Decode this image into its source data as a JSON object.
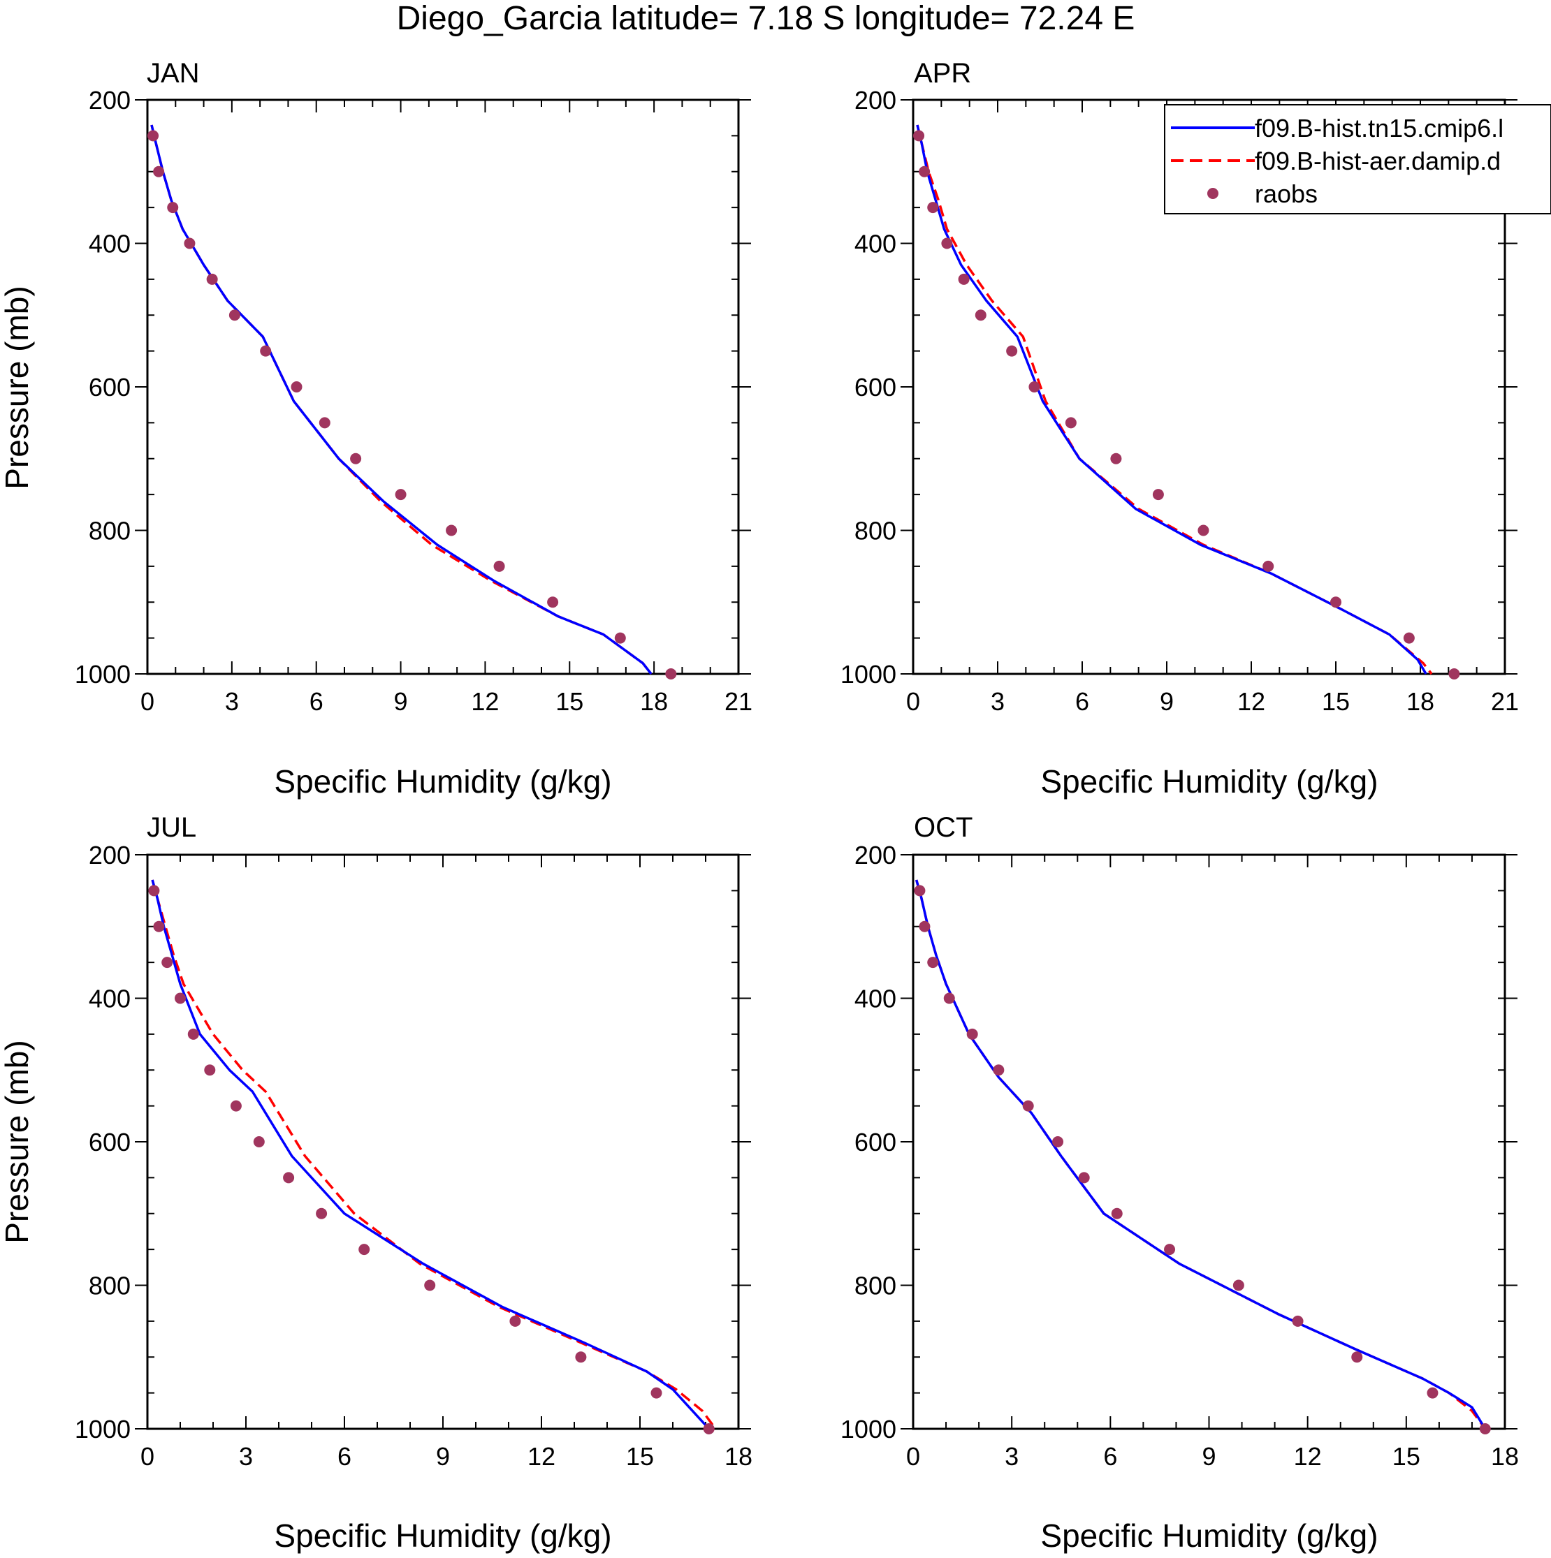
{
  "figure": {
    "title": "Diego_Garcia  latitude= 7.18 S longitude= 72.24 E"
  },
  "legend": {
    "entries": [
      {
        "label": "f09.B-hist.tn15.cmip6.l",
        "color": "#0000ff",
        "style": "solid"
      },
      {
        "label": "f09.B-hist-aer.damip.d",
        "color": "#ff0000",
        "style": "dashed"
      },
      {
        "label": "raobs",
        "color": "#a0355e",
        "style": "marker"
      }
    ]
  },
  "chart_data": [
    {
      "type": "line",
      "title": "JAN",
      "xlabel": "Specific Humidity (g/kg)",
      "ylabel": "Pressure (mb)",
      "xlim": [
        0,
        21
      ],
      "xticks": [
        0,
        3,
        6,
        9,
        12,
        15,
        18,
        21
      ],
      "ylim": [
        200,
        1000
      ],
      "yticks": [
        200,
        400,
        600,
        800,
        1000
      ],
      "y_reversed": true,
      "series": [
        {
          "name": "f09.B-hist.tn15.cmip6.l",
          "x": [
            0.15,
            0.3,
            0.55,
            0.85,
            1.25,
            2.0,
            2.85,
            4.1,
            5.2,
            6.8,
            8.4,
            10.3,
            12.3,
            14.6,
            16.2,
            17.6,
            17.9
          ],
          "y": [
            235,
            260,
            300,
            340,
            380,
            430,
            480,
            530,
            620,
            700,
            760,
            820,
            870,
            920,
            945,
            985,
            1000
          ]
        },
        {
          "name": "f09.B-hist-aer.damip.d",
          "x": [
            0.15,
            0.3,
            0.55,
            0.85,
            1.25,
            2.0,
            2.85,
            4.1,
            5.2,
            6.8,
            8.3,
            10.1,
            12.2,
            14.6,
            16.2,
            17.6,
            17.9
          ],
          "y": [
            235,
            260,
            300,
            340,
            380,
            430,
            480,
            530,
            620,
            700,
            760,
            820,
            870,
            920,
            945,
            985,
            1000
          ]
        },
        {
          "name": "raobs",
          "x": [
            0.2,
            0.4,
            0.9,
            1.5,
            2.3,
            3.1,
            4.2,
            5.3,
            6.3,
            7.4,
            9.0,
            10.8,
            12.5,
            14.4,
            16.8,
            18.6
          ],
          "y": [
            250,
            300,
            350,
            400,
            450,
            500,
            550,
            600,
            650,
            700,
            750,
            800,
            850,
            900,
            950,
            1000
          ]
        }
      ]
    },
    {
      "type": "line",
      "title": "APR",
      "xlabel": "Specific Humidity (g/kg)",
      "ylabel": "",
      "xlim": [
        0,
        21
      ],
      "xticks": [
        0,
        3,
        6,
        9,
        12,
        15,
        18,
        21
      ],
      "ylim": [
        200,
        1000
      ],
      "yticks": [
        200,
        400,
        600,
        800,
        1000
      ],
      "y_reversed": true,
      "series": [
        {
          "name": "f09.B-hist.tn15.cmip6.l",
          "x": [
            0.15,
            0.3,
            0.5,
            0.8,
            1.1,
            1.7,
            2.6,
            3.7,
            4.6,
            5.9,
            7.9,
            10.2,
            12.7,
            15.2,
            16.9,
            17.9,
            18.2
          ],
          "y": [
            235,
            260,
            300,
            340,
            380,
            430,
            480,
            530,
            620,
            700,
            770,
            820,
            860,
            910,
            945,
            980,
            1000
          ]
        },
        {
          "name": "f09.B-hist-aer.damip.d",
          "x": [
            0.15,
            0.3,
            0.55,
            0.9,
            1.2,
            1.9,
            2.8,
            3.9,
            4.7,
            5.9,
            8.0,
            10.3,
            12.7,
            15.2,
            16.9,
            18.1,
            18.4
          ],
          "y": [
            235,
            260,
            300,
            340,
            380,
            430,
            480,
            530,
            620,
            700,
            770,
            820,
            860,
            910,
            945,
            985,
            1000
          ]
        },
        {
          "name": "raobs",
          "x": [
            0.2,
            0.4,
            0.7,
            1.2,
            1.8,
            2.4,
            3.5,
            4.3,
            5.6,
            7.2,
            8.7,
            10.3,
            12.6,
            15.0,
            17.6,
            19.2
          ],
          "y": [
            250,
            300,
            350,
            400,
            450,
            500,
            550,
            600,
            650,
            700,
            750,
            800,
            850,
            900,
            950,
            1000
          ]
        }
      ]
    },
    {
      "type": "line",
      "title": "JUL",
      "xlabel": "Specific Humidity (g/kg)",
      "ylabel": "Pressure (mb)",
      "xlim": [
        0,
        18
      ],
      "xticks": [
        0,
        3,
        6,
        9,
        12,
        15,
        18
      ],
      "ylim": [
        200,
        1000
      ],
      "yticks": [
        200,
        400,
        600,
        800,
        1000
      ],
      "y_reversed": true,
      "series": [
        {
          "name": "f09.B-hist.tn15.cmip6.l",
          "x": [
            0.15,
            0.3,
            0.5,
            0.75,
            1.0,
            1.6,
            2.5,
            3.2,
            4.4,
            6.0,
            8.4,
            10.8,
            13.3,
            15.2,
            16.0,
            16.6,
            17.1
          ],
          "y": [
            235,
            260,
            300,
            340,
            380,
            450,
            500,
            530,
            620,
            700,
            770,
            830,
            880,
            920,
            945,
            975,
            1000
          ]
        },
        {
          "name": "f09.B-hist-aer.damip.d",
          "x": [
            0.15,
            0.3,
            0.55,
            0.8,
            1.1,
            2.0,
            2.9,
            3.6,
            4.8,
            6.3,
            8.3,
            10.7,
            13.2,
            15.2,
            16.1,
            16.9,
            17.3
          ],
          "y": [
            235,
            260,
            300,
            340,
            380,
            450,
            500,
            530,
            620,
            700,
            770,
            830,
            880,
            920,
            945,
            975,
            1000
          ]
        },
        {
          "name": "raobs",
          "x": [
            0.2,
            0.35,
            0.6,
            1.0,
            1.4,
            1.9,
            2.7,
            3.4,
            4.3,
            5.3,
            6.6,
            8.6,
            11.2,
            13.2,
            15.5,
            17.1
          ],
          "y": [
            250,
            300,
            350,
            400,
            450,
            500,
            550,
            600,
            650,
            700,
            750,
            800,
            850,
            900,
            950,
            1000
          ]
        }
      ]
    },
    {
      "type": "line",
      "title": "OCT",
      "xlabel": "Specific Humidity (g/kg)",
      "ylabel": "",
      "xlim": [
        0,
        18
      ],
      "xticks": [
        0,
        3,
        6,
        9,
        12,
        15,
        18
      ],
      "ylim": [
        200,
        1000
      ],
      "yticks": [
        200,
        400,
        600,
        800,
        1000
      ],
      "y_reversed": true,
      "series": [
        {
          "name": "f09.B-hist.tn15.cmip6.l",
          "x": [
            0.1,
            0.25,
            0.45,
            0.7,
            1.0,
            1.7,
            2.6,
            3.6,
            4.5,
            5.8,
            8.1,
            11.1,
            13.5,
            15.5,
            16.3,
            17.0,
            17.4
          ],
          "y": [
            235,
            260,
            300,
            340,
            380,
            450,
            510,
            560,
            620,
            700,
            770,
            840,
            890,
            930,
            950,
            970,
            1000
          ]
        },
        {
          "name": "f09.B-hist-aer.damip.d",
          "x": [
            0.1,
            0.25,
            0.45,
            0.7,
            1.0,
            1.7,
            2.6,
            3.6,
            4.5,
            5.8,
            8.1,
            11.1,
            13.5,
            15.5,
            16.3,
            17.0,
            17.4
          ],
          "y": [
            235,
            260,
            300,
            340,
            380,
            450,
            510,
            560,
            620,
            700,
            770,
            840,
            890,
            930,
            950,
            975,
            1000
          ]
        },
        {
          "name": "raobs",
          "x": [
            0.2,
            0.35,
            0.6,
            1.1,
            1.8,
            2.6,
            3.5,
            4.4,
            5.2,
            6.2,
            7.8,
            9.9,
            11.7,
            13.5,
            15.8,
            17.4
          ],
          "y": [
            250,
            300,
            350,
            400,
            450,
            500,
            550,
            600,
            650,
            700,
            750,
            800,
            850,
            900,
            950,
            1000
          ]
        }
      ]
    }
  ]
}
